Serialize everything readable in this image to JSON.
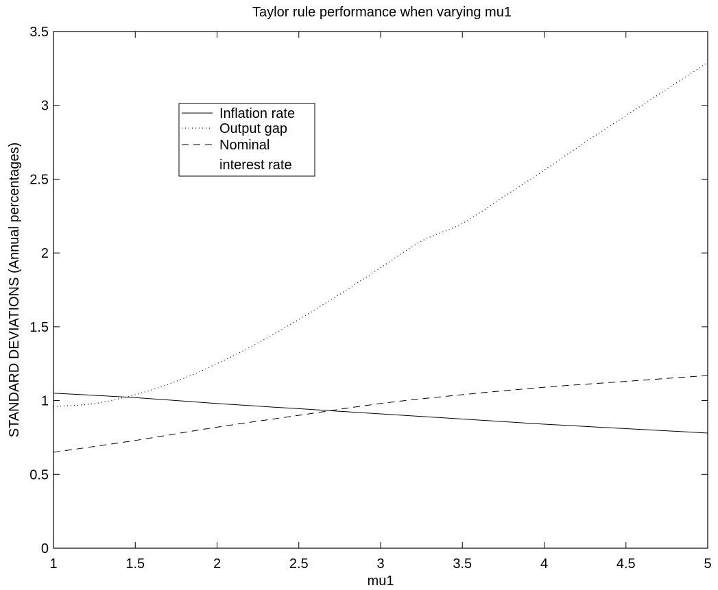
{
  "chart_data": {
    "type": "line",
    "title": "Taylor rule performance when varying mu1",
    "xlabel": "mu1",
    "ylabel": "STANDARD DEVIATIONS (Annual percentages)",
    "xlim": [
      1,
      5
    ],
    "ylim": [
      0,
      3.5
    ],
    "xticks": [
      1,
      1.5,
      2,
      2.5,
      3,
      3.5,
      4,
      4.5,
      5
    ],
    "xtick_labels": [
      "1",
      "1.5",
      "2",
      "2.5",
      "3",
      "3.5",
      "4",
      "4.5",
      "5"
    ],
    "yticks": [
      0,
      0.5,
      1,
      1.5,
      2,
      2.5,
      3,
      3.5
    ],
    "ytick_labels": [
      "0",
      "0.5",
      "1",
      "1.5",
      "2",
      "2.5",
      "3",
      "3.5"
    ],
    "grid": false,
    "legend_position": "upper-left",
    "series": [
      {
        "name": "Inflation rate",
        "style": "solid",
        "x": [
          1,
          1.5,
          2,
          2.5,
          3,
          3.5,
          4,
          4.5,
          5
        ],
        "y": [
          1.05,
          1.02,
          0.98,
          0.945,
          0.91,
          0.875,
          0.84,
          0.81,
          0.78
        ]
      },
      {
        "name": "Output gap",
        "style": "dotted",
        "x": [
          1,
          1.25,
          1.5,
          1.75,
          2,
          2.25,
          2.5,
          2.75,
          3,
          3.25,
          3.5,
          3.75,
          4,
          4.25,
          4.5,
          4.75,
          5
        ],
        "y": [
          0.96,
          0.98,
          1.04,
          1.13,
          1.25,
          1.39,
          1.55,
          1.72,
          1.9,
          2.08,
          2.2,
          2.38,
          2.56,
          2.75,
          2.93,
          3.11,
          3.29
        ]
      },
      {
        "name": "Nominal interest rate",
        "legend_lines": [
          "Nominal",
          "interest rate"
        ],
        "style": "dashed",
        "x": [
          1,
          1.5,
          2,
          2.5,
          3,
          3.5,
          4,
          4.5,
          5
        ],
        "y": [
          0.65,
          0.73,
          0.82,
          0.9,
          0.98,
          1.04,
          1.09,
          1.13,
          1.17
        ]
      }
    ]
  }
}
